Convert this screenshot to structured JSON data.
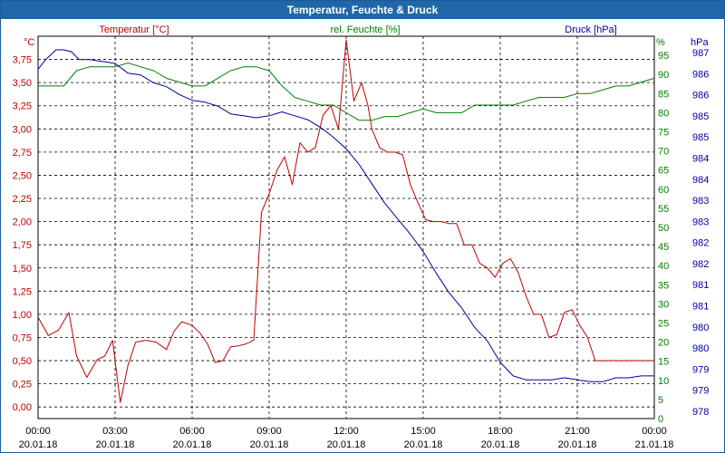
{
  "window": {
    "title": "Temperatur, Feuchte & Druck"
  },
  "colors": {
    "temperature": "#c00000",
    "humidity": "#008000",
    "pressure": "#0000a0",
    "grid": "#000000",
    "title_bg": "#1f67a8"
  },
  "chart_data": {
    "type": "line",
    "title": "Temperatur, Feuchte & Druck",
    "grid": true,
    "x": {
      "tick_times": [
        "00:00",
        "03:00",
        "06:00",
        "09:00",
        "12:00",
        "15:00",
        "18:00",
        "21:00",
        "00:00"
      ],
      "tick_dates": [
        "20.01.18",
        "20.01.18",
        "20.01.18",
        "20.01.18",
        "20.01.18",
        "20.01.18",
        "20.01.18",
        "20.01.18",
        "21.01.18"
      ],
      "range_hours": [
        0,
        24
      ]
    },
    "axes": {
      "temperature": {
        "label": "Temperatur [°C]",
        "unit": "°C",
        "position": "left",
        "range": [
          -0.125,
          4.0
        ],
        "ticks": [
          0,
          0.25,
          0.5,
          0.75,
          1.0,
          1.25,
          1.5,
          1.75,
          2.0,
          2.25,
          2.5,
          2.75,
          3.0,
          3.25,
          3.5,
          3.75
        ],
        "tick_labels": [
          "0,00",
          "0,25",
          "0,50",
          "0,75",
          "1,00",
          "1,25",
          "1,50",
          "1,75",
          "2,00",
          "2,25",
          "2,50",
          "2,75",
          "3,00",
          "3,25",
          "3,50",
          "3,75"
        ]
      },
      "humidity": {
        "label": "rel. Feuchte [%]",
        "unit": "%",
        "position": "right",
        "range": [
          0,
          100
        ],
        "ticks": [
          0,
          5,
          10,
          15,
          20,
          25,
          30,
          35,
          40,
          45,
          50,
          55,
          60,
          65,
          70,
          75,
          80,
          85,
          90,
          95
        ],
        "tick_labels": [
          "0",
          "5",
          "10",
          "15",
          "20",
          "25",
          "30",
          "35",
          "40",
          "45",
          "50",
          "55",
          "60",
          "65",
          "70",
          "75",
          "80",
          "85",
          "90",
          "95"
        ]
      },
      "pressure": {
        "label": "Druck [hPa]",
        "unit": "hPa",
        "position": "right",
        "range": [
          977.75,
          987.6
        ],
        "tick_labels": [
          "987",
          "986",
          "986",
          "985",
          "985",
          "984",
          "984",
          "983",
          "983",
          "982",
          "982",
          "981",
          "981",
          "980",
          "980",
          "979",
          "979",
          "978"
        ]
      }
    },
    "series": [
      {
        "name": "Temperatur [°C]",
        "axis": "temperature",
        "x": [
          0,
          0.4,
          0.8,
          1.2,
          1.5,
          1.9,
          2.3,
          2.6,
          2.9,
          3.2,
          3.5,
          3.8,
          4.2,
          4.6,
          5.0,
          5.3,
          5.6,
          6.0,
          6.3,
          6.6,
          6.9,
          7.2,
          7.5,
          7.8,
          8.1,
          8.4,
          8.7,
          9.0,
          9.3,
          9.6,
          9.9,
          10.2,
          10.5,
          10.8,
          11.1,
          11.4,
          11.7,
          12.0,
          12.3,
          12.6,
          12.85,
          13.0,
          13.3,
          13.6,
          13.9,
          14.2,
          14.5,
          14.8,
          15.1,
          15.4,
          15.7,
          16.0,
          16.3,
          16.6,
          16.9,
          17.2,
          17.5,
          17.8,
          18.1,
          18.4,
          18.7,
          19.0,
          19.3,
          19.6,
          19.9,
          20.2,
          20.5,
          20.8,
          21.1,
          21.4,
          21.7,
          22.0,
          22.3,
          22.6,
          22.9,
          23.2,
          23.5,
          23.8,
          24.0
        ],
        "values": [
          0.97,
          0.77,
          0.83,
          1.02,
          0.55,
          0.32,
          0.51,
          0.55,
          0.72,
          0.05,
          0.45,
          0.7,
          0.72,
          0.7,
          0.62,
          0.82,
          0.92,
          0.88,
          0.8,
          0.68,
          0.48,
          0.5,
          0.65,
          0.66,
          0.68,
          0.72,
          2.1,
          2.3,
          2.55,
          2.7,
          2.4,
          2.85,
          2.75,
          2.8,
          3.15,
          3.25,
          3.0,
          3.96,
          3.3,
          3.5,
          3.25,
          3.0,
          2.8,
          2.75,
          2.75,
          2.72,
          2.4,
          2.2,
          2.02,
          2.0,
          2.0,
          1.98,
          1.98,
          1.75,
          1.75,
          1.55,
          1.5,
          1.4,
          1.55,
          1.6,
          1.45,
          1.2,
          1.0,
          1.0,
          0.75,
          0.78,
          1.02,
          1.05,
          0.88,
          0.75,
          0.5,
          0.5,
          0.5,
          0.5,
          0.5,
          0.5,
          0.5,
          0.5,
          0.5
        ]
      },
      {
        "name": "rel. Feuchte [%]",
        "axis": "humidity",
        "x": [
          0,
          0.5,
          1.0,
          1.5,
          2.0,
          2.5,
          3.0,
          3.5,
          4.0,
          4.5,
          5.0,
          5.5,
          6.0,
          6.5,
          7.0,
          7.5,
          8.0,
          8.5,
          9.0,
          9.5,
          10.0,
          10.5,
          11.0,
          11.5,
          12.0,
          12.5,
          13.0,
          13.5,
          14.0,
          14.5,
          15.0,
          15.5,
          16.0,
          16.5,
          17.0,
          17.5,
          18.0,
          18.5,
          19.0,
          19.5,
          20.0,
          20.5,
          21.0,
          21.5,
          22.0,
          22.5,
          23.0,
          23.5,
          24.0
        ],
        "values": [
          87,
          87,
          87,
          91,
          92,
          92,
          92,
          93,
          92,
          91,
          89,
          88,
          87,
          87,
          89,
          91,
          92,
          92,
          91,
          87,
          84,
          83,
          82,
          82,
          80,
          78,
          78,
          79,
          79,
          80,
          81,
          80,
          80,
          80,
          82,
          82,
          82,
          82,
          83,
          84,
          84,
          84,
          85,
          85,
          86,
          87,
          87,
          88,
          89
        ]
      },
      {
        "name": "Druck [hPa]",
        "axis": "pressure",
        "x": [
          0,
          0.3,
          0.7,
          1.0,
          1.3,
          1.6,
          2.0,
          2.5,
          3.0,
          3.5,
          4.0,
          4.5,
          5.0,
          5.5,
          6.0,
          6.5,
          7.0,
          7.5,
          8.0,
          8.5,
          9.0,
          9.5,
          10.0,
          10.5,
          11.0,
          11.5,
          12.0,
          12.5,
          13.0,
          13.5,
          14.0,
          14.5,
          15.0,
          15.5,
          16.0,
          16.5,
          17.0,
          17.5,
          18.0,
          18.5,
          19.0,
          19.5,
          20.0,
          20.5,
          21.0,
          21.5,
          22.0,
          22.5,
          23.0,
          23.5,
          24.0
        ],
        "values": [
          986.75,
          987.0,
          987.25,
          987.25,
          987.2,
          987.0,
          987.0,
          986.95,
          986.9,
          986.65,
          986.6,
          986.4,
          986.3,
          986.1,
          985.95,
          985.9,
          985.8,
          985.6,
          985.55,
          985.5,
          985.55,
          985.65,
          985.55,
          985.45,
          985.25,
          985.0,
          984.7,
          984.3,
          983.8,
          983.3,
          982.9,
          982.5,
          982.05,
          981.5,
          981.0,
          980.6,
          980.1,
          979.75,
          979.2,
          978.85,
          978.75,
          978.75,
          978.75,
          978.8,
          978.75,
          978.7,
          978.7,
          978.8,
          978.8,
          978.85,
          978.85
        ]
      }
    ]
  }
}
